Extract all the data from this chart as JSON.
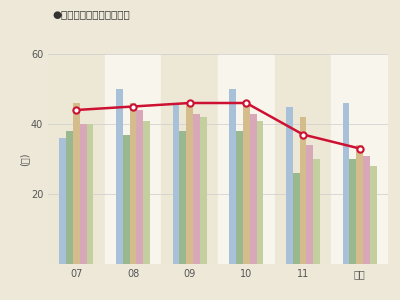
{
  "title": "●トリートメント（有料）",
  "ylabel": "(回)",
  "categories": [
    "07",
    "08",
    "09",
    "10",
    "11",
    "本年"
  ],
  "bar_groups": [
    [
      36,
      50,
      46,
      50,
      45,
      46
    ],
    [
      38,
      37,
      38,
      38,
      26,
      30
    ],
    [
      46,
      46,
      46,
      46,
      42,
      34
    ],
    [
      40,
      44,
      43,
      43,
      34,
      31
    ],
    [
      40,
      41,
      42,
      41,
      30,
      28
    ]
  ],
  "bar_colors": [
    "#a8c0d8",
    "#9ab890",
    "#d4bc8c",
    "#d8a8b8",
    "#c4cfa0"
  ],
  "line_values": [
    44,
    45,
    46,
    46,
    37,
    33
  ],
  "line_color": "#cc1133",
  "ylim": [
    0,
    60
  ],
  "yticks": [
    20,
    40,
    60
  ],
  "title_fontsize": 7.5,
  "axis_fontsize": 7,
  "figsize": [
    4.0,
    3.0
  ],
  "dpi": 100,
  "fig_bg": "#ede8d8",
  "plot_bg_even": "#ede8d5",
  "plot_bg_odd": "#f8f5ec"
}
